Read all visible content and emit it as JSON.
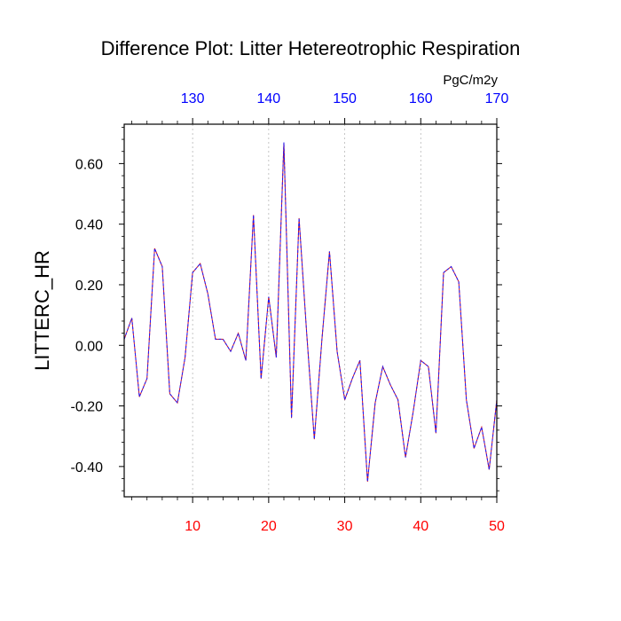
{
  "chart_data": {
    "type": "line",
    "title": "Difference Plot: Litter Hetereotrophic Respiration",
    "ylabel": "LITTERC_HR",
    "units": "PgC/m2y",
    "xlim": [
      1,
      50
    ],
    "ylim": [
      -0.5,
      0.73
    ],
    "grid": "vertical dashed",
    "x": [
      1,
      2,
      3,
      4,
      5,
      6,
      7,
      8,
      9,
      10,
      11,
      12,
      13,
      14,
      15,
      16,
      17,
      18,
      19,
      20,
      21,
      22,
      23,
      24,
      25,
      26,
      27,
      28,
      29,
      30,
      31,
      32,
      33,
      34,
      35,
      36,
      37,
      38,
      39,
      40,
      41,
      42,
      43,
      44,
      45,
      46,
      47,
      48,
      49,
      50
    ],
    "series": [
      {
        "values": [
          0.02,
          0.09,
          -0.17,
          -0.11,
          0.32,
          0.26,
          -0.16,
          -0.19,
          -0.04,
          0.24,
          0.27,
          0.17,
          0.02,
          0.02,
          -0.02,
          0.04,
          -0.05,
          0.43,
          -0.11,
          0.16,
          -0.04,
          0.67,
          -0.24,
          0.42,
          0.04,
          -0.31,
          0.02,
          0.31,
          -0.02,
          -0.18,
          -0.11,
          -0.05,
          -0.45,
          -0.19,
          -0.07,
          -0.13,
          -0.18,
          -0.37,
          -0.22,
          -0.05,
          -0.07,
          -0.29,
          0.24,
          0.26,
          0.21,
          -0.18,
          -0.34,
          -0.27,
          -0.41,
          -0.18
        ],
        "color": "#4b0082"
      }
    ],
    "bottom_axis": {
      "ticks": [
        "10",
        "20",
        "30",
        "40",
        "50"
      ],
      "tick_values": [
        10,
        20,
        30,
        40,
        50
      ],
      "color": "#ff0000"
    },
    "top_axis": {
      "ticks": [
        "130",
        "140",
        "150",
        "160",
        "170"
      ],
      "tick_values": [
        10,
        20,
        30,
        40,
        50
      ],
      "color": "#0000ff"
    },
    "left_axis": {
      "ticks": [
        "0.60",
        "0.40",
        "0.20",
        "0.00",
        "-0.20",
        "-0.40"
      ],
      "tick_values": [
        0.6,
        0.4,
        0.2,
        0.0,
        -0.2,
        -0.4
      ]
    }
  }
}
